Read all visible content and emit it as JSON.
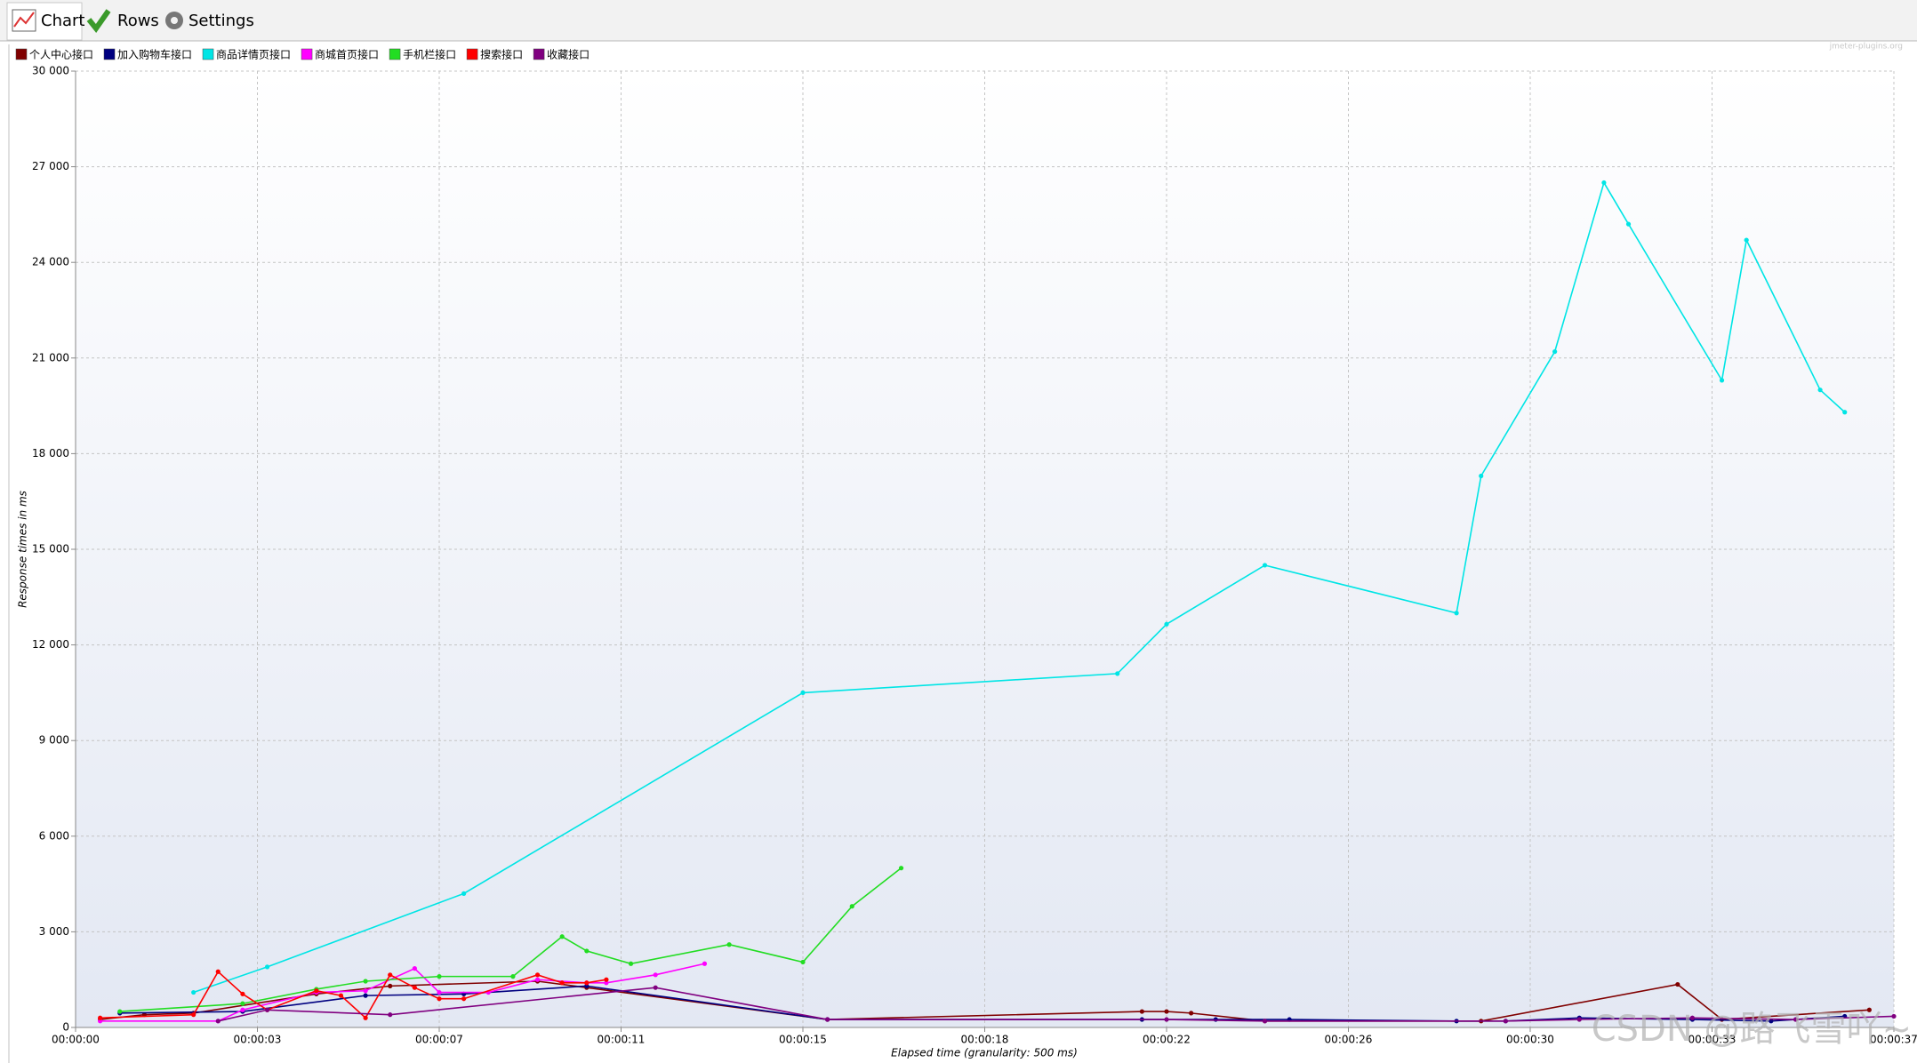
{
  "tabs": [
    "Chart",
    "Rows",
    "Settings"
  ],
  "site_label": "jmeter-plugins.org",
  "watermark": "CSDN @路飞雪吖~",
  "chart_data": {
    "type": "line",
    "x_label": "Elapsed time (granularity: 500 ms)",
    "y_label": "Response times in ms",
    "xlim": [
      0,
      37
    ],
    "ylim": [
      0,
      30000
    ],
    "grid": true,
    "legend": "top-left",
    "xticks": [
      {
        "value": 0,
        "label": "00:00:00"
      },
      {
        "value": 3.7,
        "label": "00:00:03"
      },
      {
        "value": 7.4,
        "label": "00:00:07"
      },
      {
        "value": 11.1,
        "label": "00:00:11"
      },
      {
        "value": 14.8,
        "label": "00:00:15"
      },
      {
        "value": 18.5,
        "label": "00:00:18"
      },
      {
        "value": 22.2,
        "label": "00:00:22"
      },
      {
        "value": 25.9,
        "label": "00:00:26"
      },
      {
        "value": 29.6,
        "label": "00:00:30"
      },
      {
        "value": 33.3,
        "label": "00:00:33"
      },
      {
        "value": 37,
        "label": "00:00:37"
      }
    ],
    "yticks": [
      0,
      {
        "value": 3000,
        "label": "3 000"
      },
      {
        "value": 6000,
        "label": "6 000"
      },
      {
        "value": 9000,
        "label": "9 000"
      },
      {
        "value": 12000,
        "label": "12 000"
      },
      {
        "value": 15000,
        "label": "15 000"
      },
      {
        "value": 18000,
        "label": "18 000"
      },
      {
        "value": 21000,
        "label": "21 000"
      },
      {
        "value": 24000,
        "label": "24 000"
      },
      {
        "value": 27000,
        "label": "27 000"
      },
      {
        "value": 30000,
        "label": "30 000"
      }
    ],
    "series": [
      {
        "name": "个人中心接口",
        "color": "#800000",
        "x": [
          0.5,
          1.4,
          2.4,
          4.9,
          6.4,
          9.4,
          10.4,
          15.3,
          21.7,
          22.2,
          22.7,
          24.2,
          28.6,
          32.6,
          33.5,
          36.5
        ],
        "values": [
          250,
          400,
          450,
          1050,
          1300,
          1450,
          1250,
          250,
          500,
          500,
          450,
          200,
          200,
          1350,
          250,
          550
        ]
      },
      {
        "name": "加入购物车接口",
        "color": "#000080",
        "x": [
          0.9,
          3.4,
          5.9,
          7.9,
          10.4,
          15.3,
          21.7,
          23.2,
          24.7,
          28.1,
          29.1,
          30.6,
          32.9,
          34.5,
          36.0
        ],
        "values": [
          450,
          500,
          1000,
          1050,
          1300,
          250,
          250,
          250,
          250,
          200,
          200,
          300,
          250,
          200,
          350
        ]
      },
      {
        "name": "商品详情页接口",
        "color": "#00e5e5",
        "x": [
          2.4,
          3.9,
          7.9,
          14.8,
          21.2,
          22.2,
          24.2,
          28.1,
          28.6,
          30.1,
          31.1,
          31.6,
          33.5,
          34.0,
          35.5,
          36.0
        ],
        "values": [
          1100,
          1900,
          4200,
          10500,
          11100,
          12650,
          14500,
          13000,
          17300,
          21200,
          26500,
          25200,
          20300,
          24700,
          20000,
          19300
        ]
      },
      {
        "name": "商城首页接口",
        "color": "#ff00ff",
        "x": [
          0.5,
          2.9,
          3.4,
          4.9,
          5.9,
          6.9,
          7.4,
          8.4,
          9.4,
          10.4,
          10.8,
          11.8,
          12.8
        ],
        "values": [
          200,
          200,
          550,
          1100,
          1150,
          1850,
          1100,
          1100,
          1500,
          1400,
          1400,
          1650,
          2000
        ]
      },
      {
        "name": "手机栏接口",
        "color": "#22dd22",
        "x": [
          0.9,
          3.4,
          4.9,
          5.9,
          7.4,
          8.9,
          9.9,
          10.4,
          11.3,
          13.3,
          14.8,
          15.8,
          16.8
        ],
        "values": [
          500,
          750,
          1200,
          1450,
          1600,
          1600,
          2850,
          2400,
          2000,
          2600,
          2050,
          3800,
          5000
        ]
      },
      {
        "name": "搜索接口",
        "color": "#ff0000",
        "x": [
          0.5,
          2.4,
          2.9,
          3.4,
          3.9,
          4.9,
          5.4,
          5.9,
          6.4,
          6.9,
          7.4,
          7.9,
          9.4,
          9.9,
          10.4,
          10.8
        ],
        "values": [
          300,
          400,
          1750,
          1050,
          550,
          1150,
          1000,
          300,
          1650,
          1250,
          900,
          900,
          1650,
          1400,
          1400,
          1500
        ]
      },
      {
        "name": "收藏接口",
        "color": "#800080",
        "x": [
          2.9,
          3.9,
          6.4,
          11.8,
          15.3,
          22.2,
          24.2,
          29.1,
          30.6,
          32.9,
          35.0,
          37.0
        ],
        "values": [
          200,
          550,
          400,
          1250,
          250,
          250,
          200,
          200,
          250,
          300,
          250,
          350
        ]
      }
    ]
  }
}
